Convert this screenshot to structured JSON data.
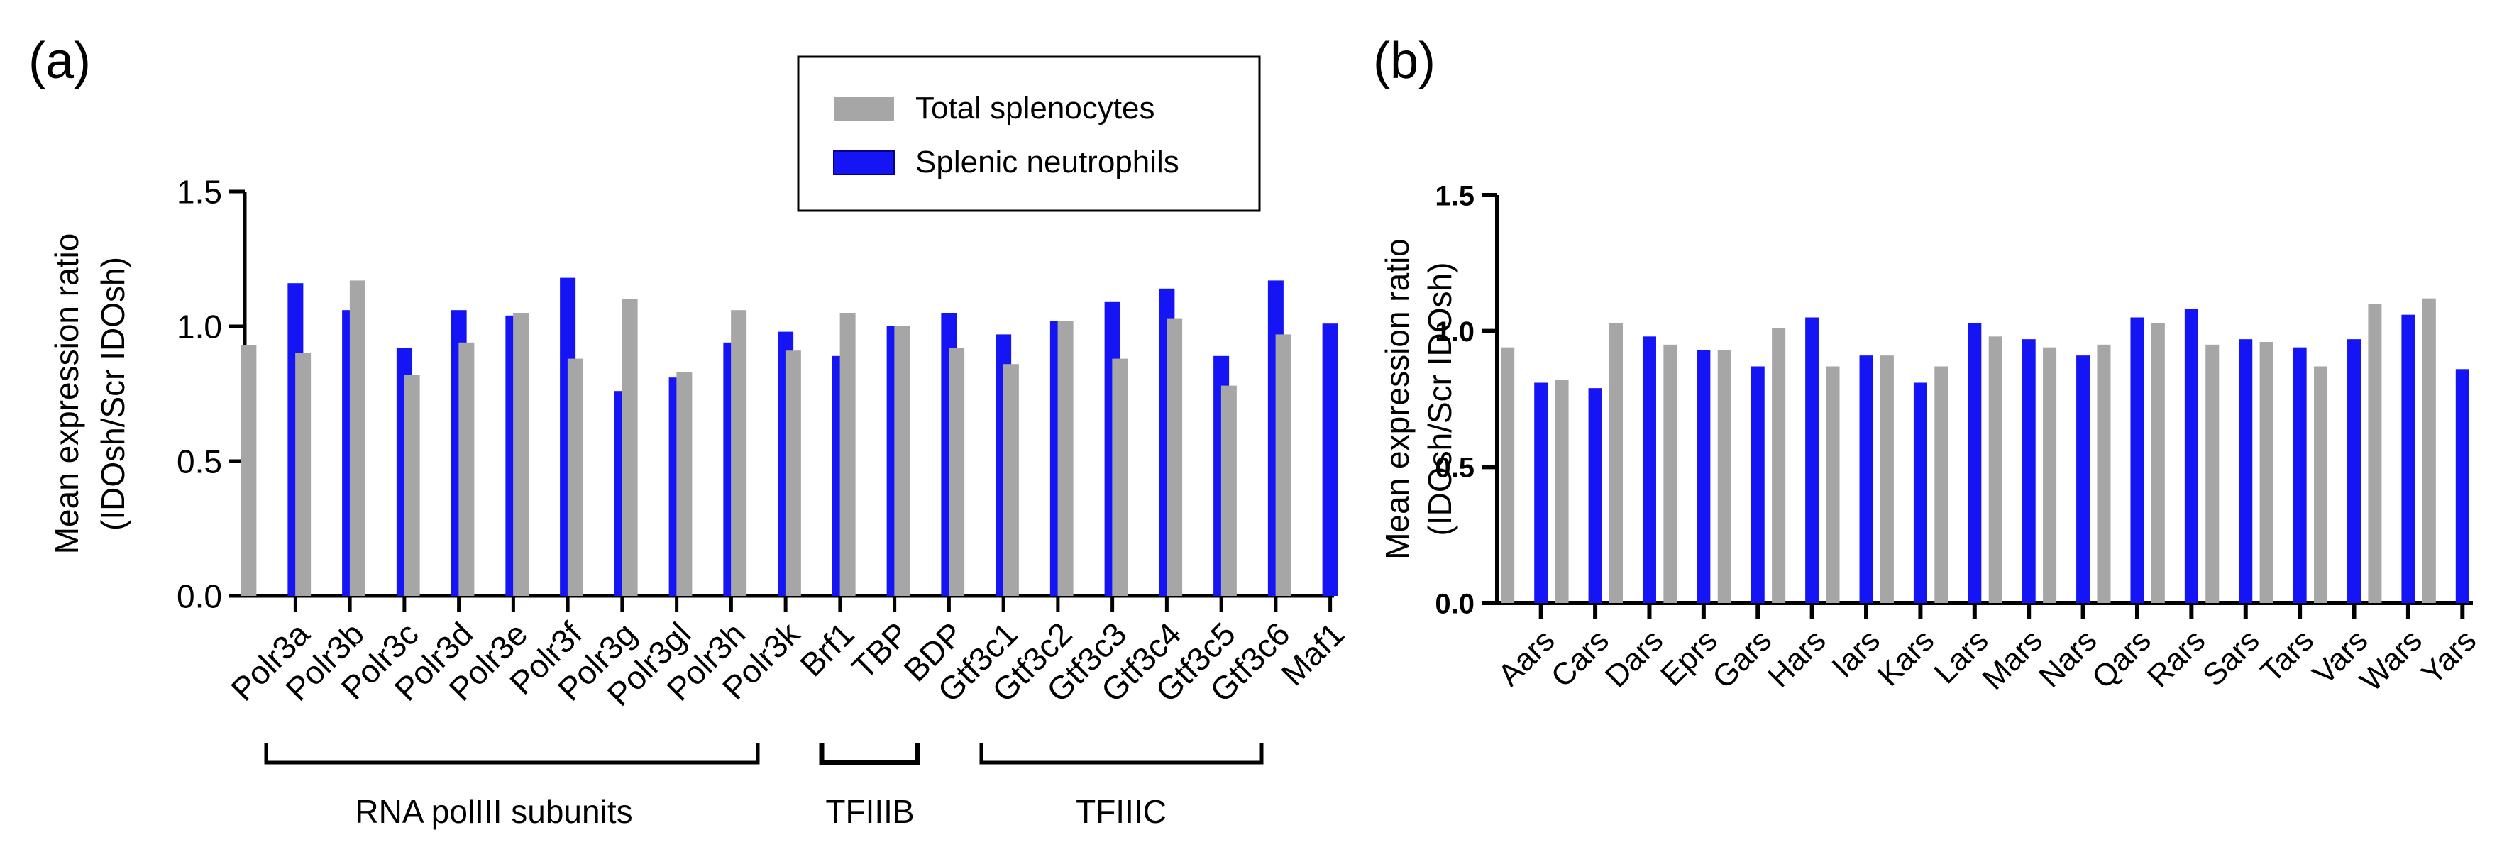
{
  "panel_labels": {
    "a": "(a)",
    "b": "(b)"
  },
  "legend": {
    "items": [
      {
        "label": "Total splenocytes",
        "color": "#A6A6A6"
      },
      {
        "label": "Splenic neutrophils",
        "color": "#1414F5"
      }
    ]
  },
  "groups": [
    {
      "label": "RNA polIII subunits"
    },
    {
      "label": "TFIIIB"
    },
    {
      "label": "TFIIIC"
    }
  ],
  "chart_data": [
    {
      "type": "bar",
      "title": "",
      "xlabel": "",
      "ylabel": "Mean expression ratio",
      "ylabel2": "(IDOsh/Scr IDOsh)",
      "ylim": [
        0,
        1.5
      ],
      "yticks": [
        "0.0",
        "0.5",
        "1.0",
        "1.5"
      ],
      "grid": false,
      "legend_position": "top-right",
      "categories": [
        "Polr3a",
        "Polr3b",
        "Polr3c",
        "Polr3d",
        "Polr3e",
        "Polr3f",
        "Polr3g",
        "Polr3gl",
        "Polr3h",
        "Polr3k",
        "Brf1",
        "TBP",
        "BDP",
        "Gtf3c1",
        "Gtf3c2",
        "Gtf3c3",
        "Gtf3c4",
        "Gtf3c5",
        "Gtf3c6",
        "Maf1"
      ],
      "series": [
        {
          "name": "Total splenocytes",
          "color": "#A6A6A6",
          "values": [
            0.93,
            0.9,
            1.17,
            0.82,
            0.94,
            1.05,
            0.88,
            1.1,
            0.83,
            1.06,
            0.91,
            1.05,
            1.0,
            0.92,
            0.86,
            1.02,
            0.88,
            1.03,
            0.78,
            0.97
          ]
        },
        {
          "name": "Splenic neutrophils",
          "color": "#1414F5",
          "values": [
            1.16,
            1.06,
            0.92,
            1.06,
            1.04,
            1.18,
            0.76,
            0.81,
            0.94,
            0.98,
            0.89,
            1.0,
            1.05,
            0.97,
            1.02,
            1.09,
            1.14,
            0.89,
            1.17,
            1.01
          ]
        }
      ],
      "annotations": [
        {
          "label": "RNA polIII subunits",
          "from": "Polr3a",
          "to": "Polr3k"
        },
        {
          "label": "TFIIIB",
          "from": "Brf1",
          "to": "BDP"
        },
        {
          "label": "TFIIIC",
          "from": "Gtf3c1",
          "to": "Gtf3c6"
        }
      ]
    },
    {
      "type": "bar",
      "title": "",
      "xlabel": "",
      "ylabel": "Mean expression ratio",
      "ylabel2": "(IDOsh/Scr IDOsh)",
      "ylim": [
        0,
        1.5
      ],
      "yticks": [
        "0.0",
        "0.5",
        "1.0",
        "1.5"
      ],
      "grid": false,
      "categories": [
        "Aars",
        "Cars",
        "Dars",
        "Eprs",
        "Gars",
        "Hars",
        "Iars",
        "Kars",
        "Lars",
        "Mars",
        "Nars",
        "Qars",
        "Rars",
        "Sars",
        "Tars",
        "Vars",
        "Wars",
        "Yars"
      ],
      "series": [
        {
          "name": "Total splenocytes",
          "color": "#A6A6A6",
          "values": [
            0.94,
            0.82,
            1.03,
            0.95,
            0.93,
            1.01,
            0.87,
            0.91,
            0.87,
            0.98,
            0.94,
            0.95,
            1.03,
            0.95,
            0.96,
            0.87,
            1.1,
            1.12
          ]
        },
        {
          "name": "Splenic neutrophils",
          "color": "#1414F5",
          "values": [
            0.81,
            0.79,
            0.98,
            0.93,
            0.87,
            1.05,
            0.91,
            0.81,
            1.03,
            0.97,
            0.91,
            1.05,
            1.08,
            0.97,
            0.94,
            0.97,
            1.06,
            0.86
          ]
        }
      ]
    }
  ]
}
